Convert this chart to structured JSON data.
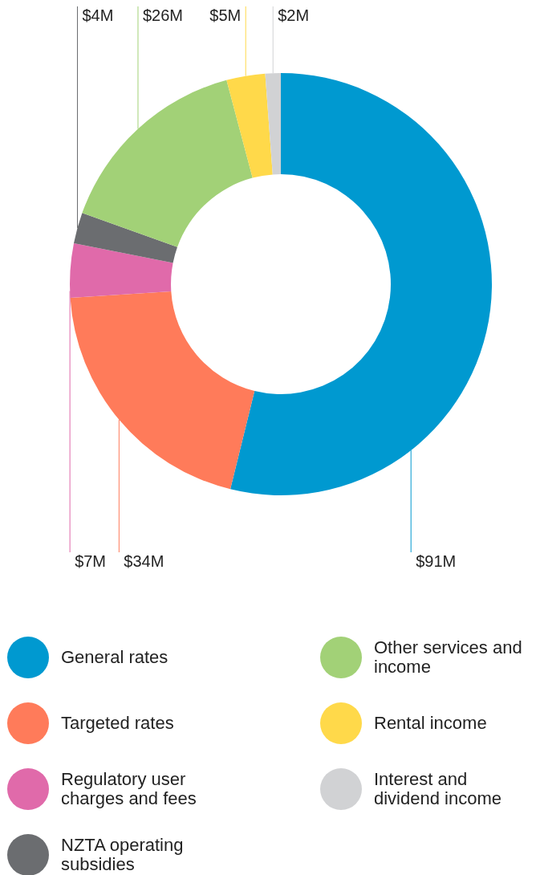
{
  "chart_data": {
    "type": "donut",
    "categories": [
      "General rates",
      "Targeted rates",
      "Regulatory user charges and fees",
      "NZTA operating subsidies",
      "Other services and income",
      "Rental income",
      "Interest and dividend income"
    ],
    "values": [
      91,
      34,
      7,
      4,
      26,
      5,
      2
    ],
    "colors": [
      "#0099d0",
      "#ff7b5a",
      "#e06aaa",
      "#6b6d70",
      "#a2d177",
      "#ffd94a",
      "#d1d2d4"
    ],
    "value_labels": [
      "$91M",
      "$34M",
      "$7M",
      "$4M",
      "$26M",
      "$5M",
      "$2M"
    ],
    "legend": "bottom"
  }
}
